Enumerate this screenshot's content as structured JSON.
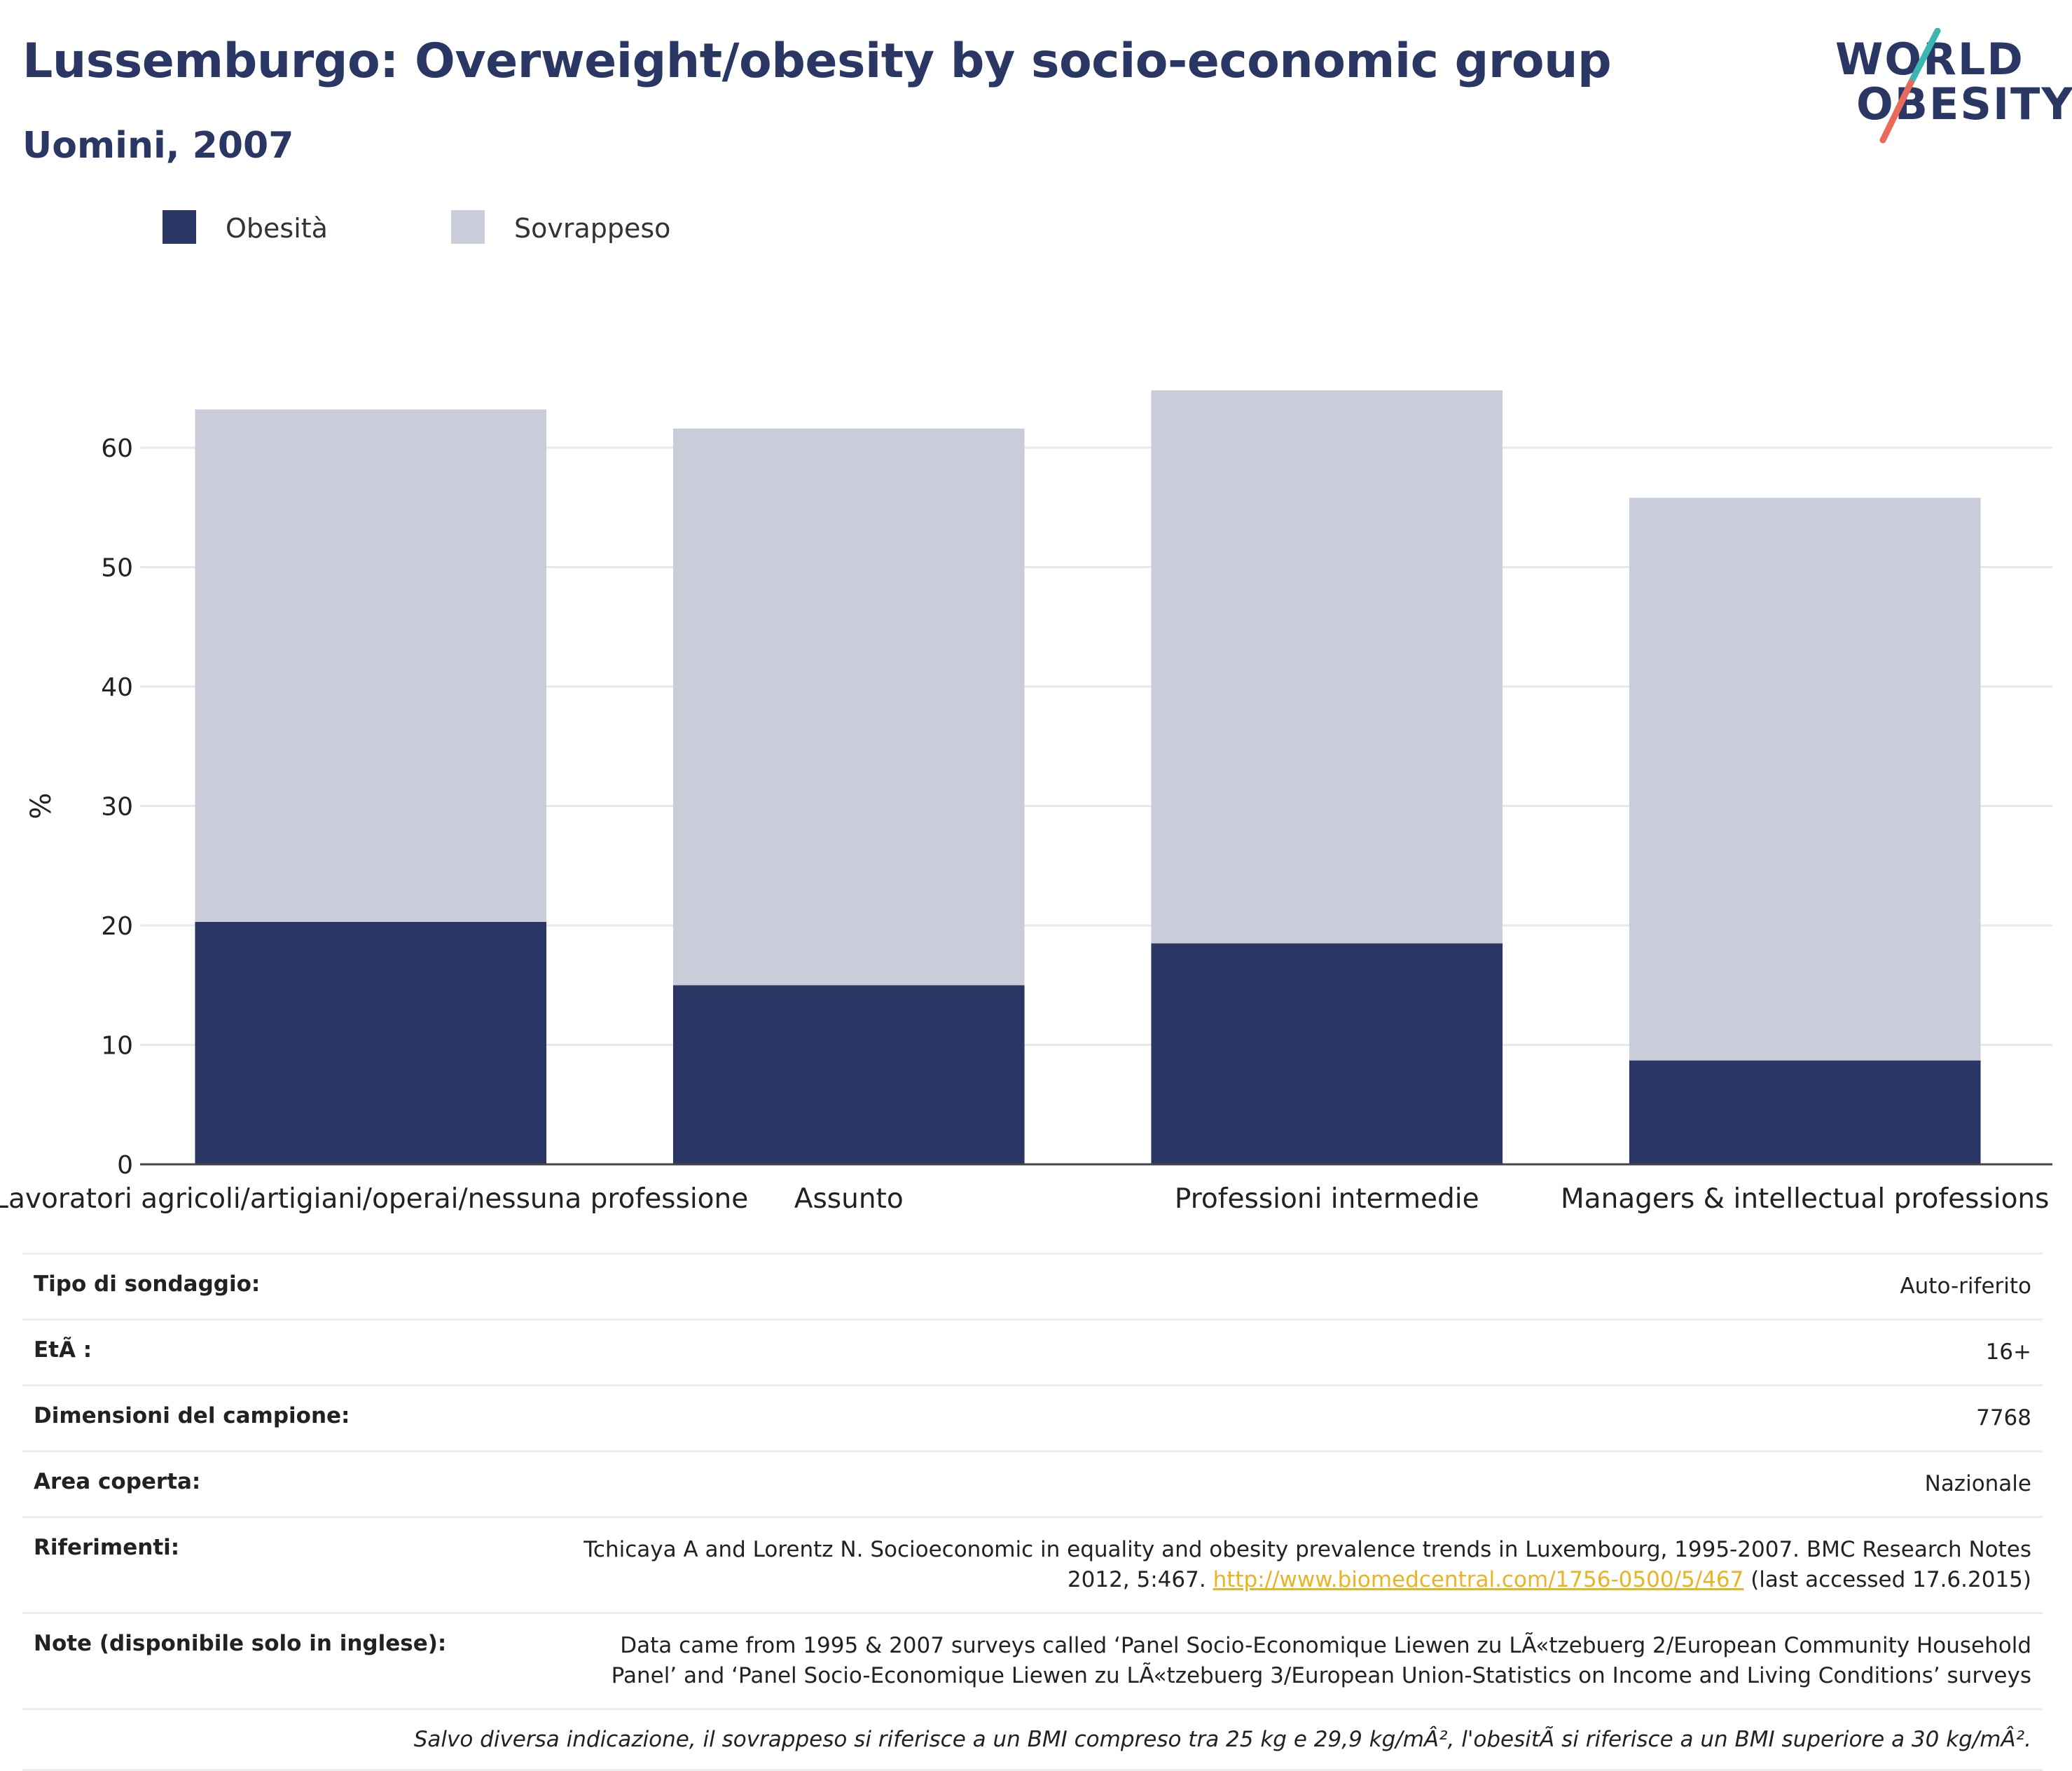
{
  "title": "Lussemburgo: Overweight/obesity by socio-economic group",
  "subtitle": "Uomini, 2007",
  "logo": {
    "line1": "WORLD",
    "line2": "OBESITY"
  },
  "colors": {
    "obesity": "#2a3764",
    "overweight": "#cacdd9",
    "accent_teal": "#3bb7b0",
    "accent_coral": "#e86a5a",
    "link": "#e8b325"
  },
  "legend": {
    "items": [
      "Obesità",
      "Sovrappeso"
    ]
  },
  "chart_data": {
    "type": "bar",
    "stacked": true,
    "categories": [
      "Lavoratori agricoli/artigiani/operai/nessuna professione",
      "Assunto",
      "Professioni intermedie",
      "Managers & intellectual professions"
    ],
    "series": [
      {
        "name": "Obesità",
        "values": [
          20.3,
          15.0,
          18.5,
          8.7
        ]
      },
      {
        "name": "Sovrappeso",
        "values": [
          42.9,
          46.6,
          46.3,
          47.1
        ]
      }
    ],
    "ylabel": "%",
    "ylim": [
      0,
      70
    ],
    "yticks": [
      0,
      10,
      20,
      30,
      40,
      50,
      60
    ],
    "grid": true,
    "legend_position": "top-left"
  },
  "info": {
    "survey_type": {
      "label": "Tipo di sondaggio:",
      "value": "Auto-riferito"
    },
    "age": {
      "label": "EtÃ :",
      "value": "16+"
    },
    "sample_size": {
      "label": "Dimensioni del campione:",
      "value": "7768"
    },
    "area": {
      "label": "Area coperta:",
      "value": "Nazionale"
    },
    "references": {
      "label": "Riferimenti:",
      "text_before": "Tchicaya A and Lorentz N. Socioeconomic in equality and obesity prevalence trends in Luxembourg, 1995-2007. BMC Research Notes 2012, 5:467.",
      "link": "http://www.biomedcentral.com/1756-0500/5/467",
      "text_after": "(last accessed 17.6.2015)"
    },
    "notes": {
      "label": "Note (disponibile solo in inglese):",
      "value": "Data came from 1995 & 2007 surveys called ‘Panel Socio-Economique Liewen zu LÃ«tzebuerg 2/European Community Household Panel’ and ‘Panel Socio-Economique Liewen zu LÃ«tzebuerg 3/European Union-Statistics on Income and Living Conditions’ surveys"
    }
  },
  "footnote": "Salvo diversa indicazione, il sovrappeso si riferisce a un BMI compreso tra 25 kg e 29,9 kg/mÂ², l'obesitÃ  si riferisce a un BMI superiore a 30 kg/mÂ²."
}
